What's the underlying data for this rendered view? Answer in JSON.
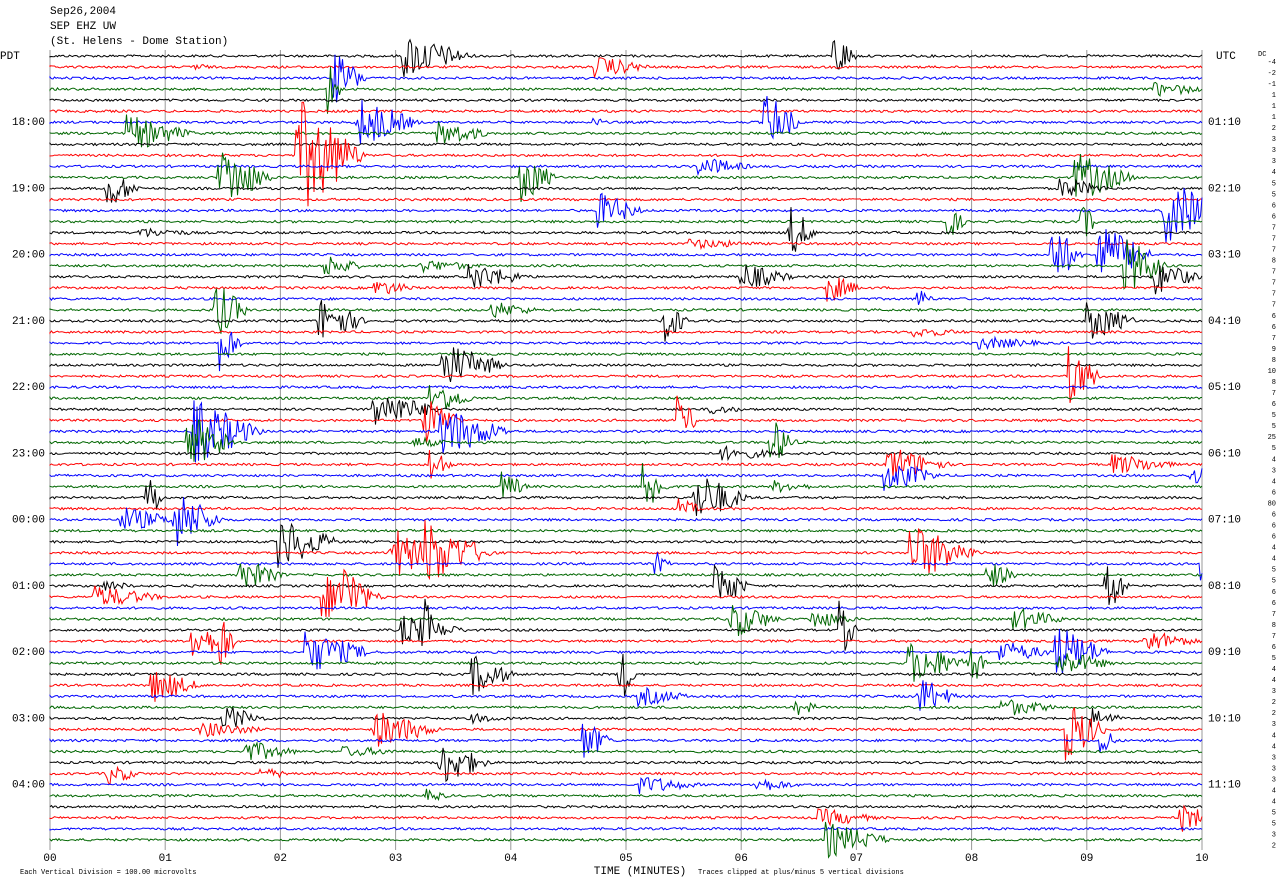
{
  "header": {
    "date": "Sep26,2004",
    "station": "SEP EHZ UW",
    "location": "(St. Helens - Dome Station)"
  },
  "left_zone": "PDT",
  "right_zone": "UTC",
  "dc_label": "DC",
  "left_hours": [
    "18:00",
    "19:00",
    "20:00",
    "21:00",
    "22:00",
    "23:00",
    "00:00",
    "01:00",
    "02:00",
    "03:00",
    "04:00"
  ],
  "right_hours": [
    "01:10",
    "02:10",
    "03:10",
    "04:10",
    "05:10",
    "06:10",
    "07:10",
    "08:10",
    "09:10",
    "10:10",
    "11:10"
  ],
  "x_ticks": [
    "00",
    "01",
    "02",
    "03",
    "04",
    "05",
    "06",
    "07",
    "08",
    "09",
    "10"
  ],
  "x_label": "TIME (MINUTES)",
  "footer_left": "Each Vertical Division =  100.00 microvolts",
  "footer_right": "Traces clipped at plus/minus 5 vertical divisions",
  "dc_offsets": [
    -4,
    -2,
    -1,
    1,
    1,
    1,
    2,
    3,
    3,
    3,
    4,
    5,
    5,
    6,
    6,
    7,
    7,
    7,
    8,
    7,
    7,
    7,
    7,
    6,
    6,
    7,
    9,
    8,
    10,
    8,
    7,
    6,
    5,
    5,
    25,
    5,
    4,
    3,
    4,
    6,
    80,
    6,
    6,
    6,
    4,
    4,
    5,
    5,
    6,
    6,
    7,
    8,
    7,
    6,
    5,
    4,
    4,
    3,
    2,
    2,
    3,
    4,
    4,
    3,
    3,
    3,
    4,
    4,
    5,
    5,
    3,
    2
  ],
  "trace_colors": [
    "#000000",
    "#ff0000",
    "#0000ff",
    "#006600"
  ]
}
